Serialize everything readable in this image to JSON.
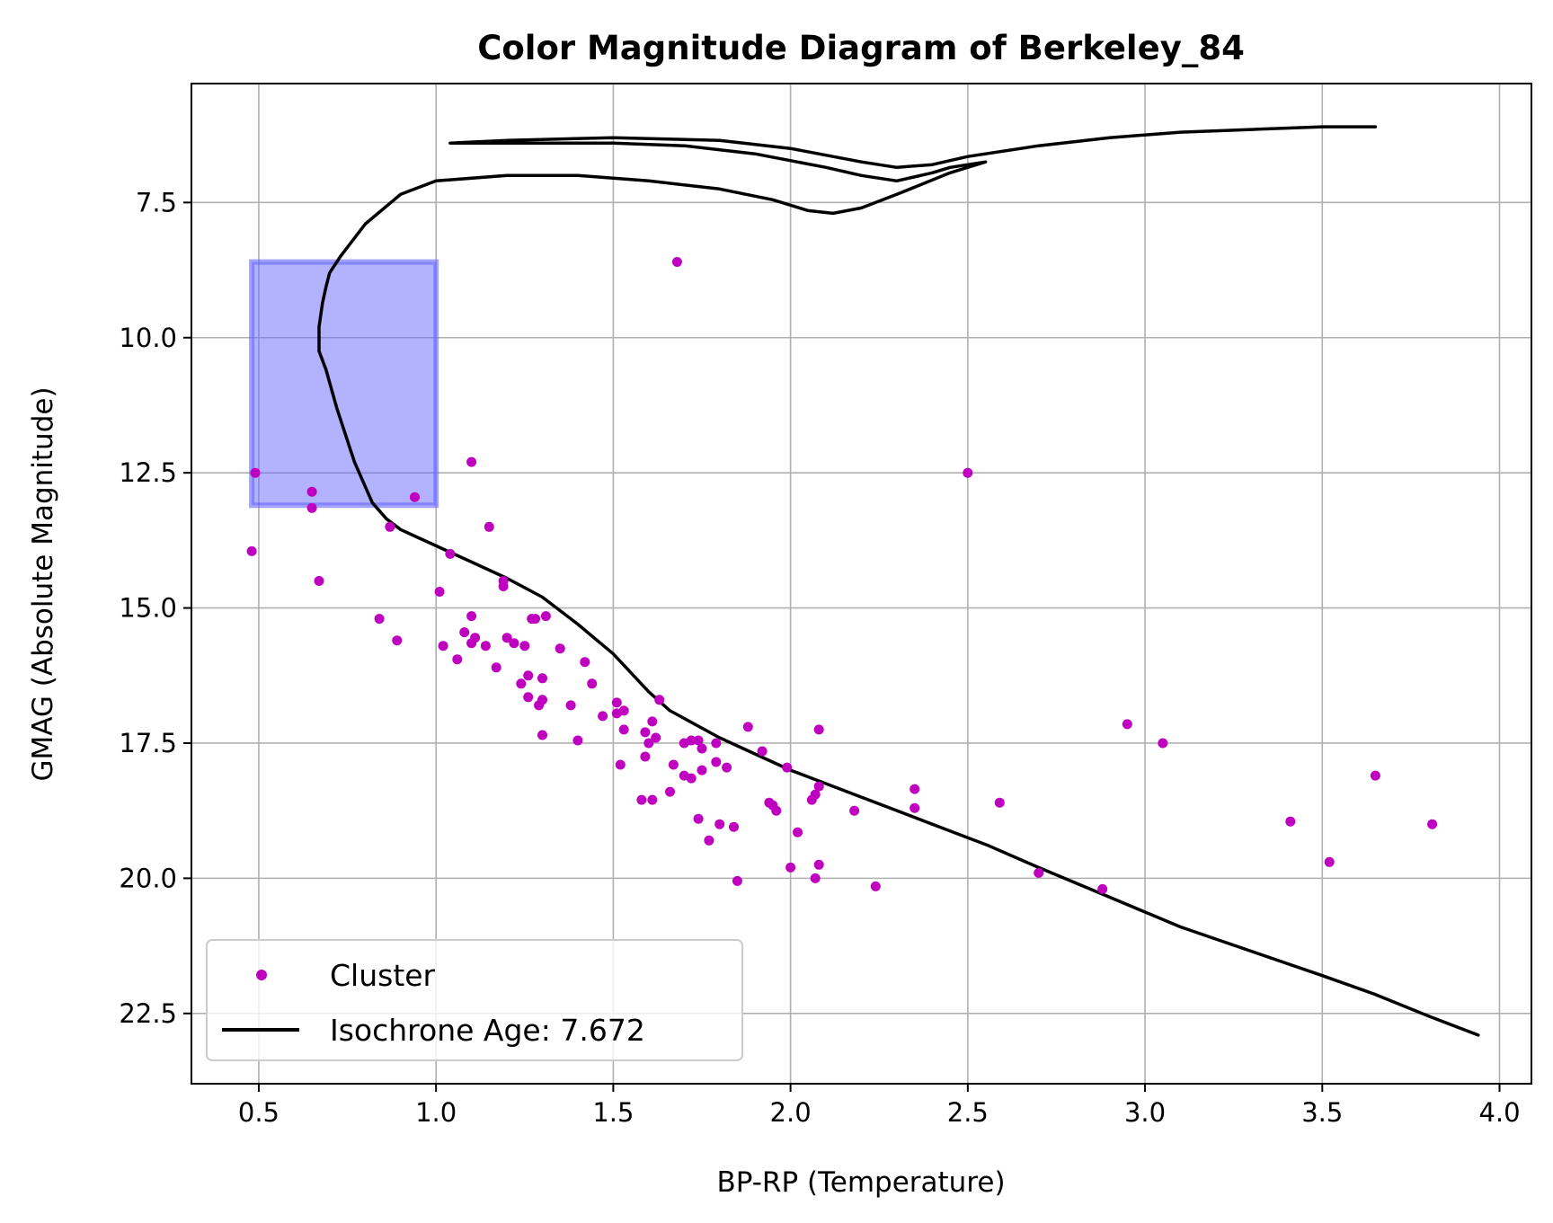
{
  "chart_data": {
    "type": "scatter",
    "title": "Color Magnitude Diagram of Berkeley_84",
    "xlabel": "BP-RP (Temperature)",
    "ylabel": "GMAG (Absolute Magnitude)",
    "xlim": [
      0.31,
      4.09
    ],
    "ylim": [
      23.8,
      5.3
    ],
    "y_inverted": true,
    "grid": true,
    "legend_position": "lower-left",
    "x_ticks": [
      "0.5",
      "1.0",
      "1.5",
      "2.0",
      "2.5",
      "3.0",
      "3.5",
      "4.0"
    ],
    "y_ticks": [
      "7.5",
      "10.0",
      "12.5",
      "15.0",
      "17.5",
      "20.0",
      "22.5"
    ],
    "colors": {
      "cluster": "#bf00bf",
      "isochrone": "#000000",
      "box": "#6666ff"
    },
    "highlight_box": {
      "x": [
        0.48,
        1.0
      ],
      "y": [
        8.6,
        13.1
      ]
    },
    "series": [
      {
        "name": "Cluster",
        "kind": "scatter",
        "points": [
          [
            1.68,
            8.6
          ],
          [
            2.5,
            12.5
          ],
          [
            1.1,
            12.3
          ],
          [
            0.49,
            12.5
          ],
          [
            0.65,
            12.85
          ],
          [
            0.65,
            13.15
          ],
          [
            0.94,
            12.95
          ],
          [
            0.87,
            13.5
          ],
          [
            1.15,
            13.5
          ],
          [
            0.48,
            13.95
          ],
          [
            1.04,
            14.0
          ],
          [
            0.67,
            14.5
          ],
          [
            1.19,
            14.5
          ],
          [
            1.19,
            14.6
          ],
          [
            1.01,
            14.7
          ],
          [
            0.84,
            15.2
          ],
          [
            0.89,
            15.6
          ],
          [
            1.1,
            15.15
          ],
          [
            1.08,
            15.45
          ],
          [
            1.11,
            15.55
          ],
          [
            1.1,
            15.65
          ],
          [
            1.02,
            15.7
          ],
          [
            1.06,
            15.95
          ],
          [
            1.14,
            15.7
          ],
          [
            1.2,
            15.55
          ],
          [
            1.22,
            15.65
          ],
          [
            1.25,
            15.7
          ],
          [
            1.27,
            15.2
          ],
          [
            1.28,
            15.2
          ],
          [
            1.31,
            15.15
          ],
          [
            1.35,
            15.75
          ],
          [
            1.42,
            16.0
          ],
          [
            1.17,
            16.1
          ],
          [
            1.24,
            16.4
          ],
          [
            1.26,
            16.25
          ],
          [
            1.3,
            16.3
          ],
          [
            1.26,
            16.65
          ],
          [
            1.29,
            16.8
          ],
          [
            1.3,
            16.7
          ],
          [
            1.38,
            16.8
          ],
          [
            1.44,
            16.4
          ],
          [
            1.47,
            17.0
          ],
          [
            1.51,
            16.75
          ],
          [
            1.51,
            16.95
          ],
          [
            1.53,
            16.9
          ],
          [
            1.53,
            17.25
          ],
          [
            1.61,
            17.1
          ],
          [
            1.63,
            16.7
          ],
          [
            1.3,
            17.35
          ],
          [
            1.4,
            17.45
          ],
          [
            1.59,
            17.3
          ],
          [
            1.6,
            17.5
          ],
          [
            1.59,
            17.75
          ],
          [
            1.62,
            17.4
          ],
          [
            1.72,
            17.45
          ],
          [
            1.7,
            17.5
          ],
          [
            1.74,
            17.45
          ],
          [
            1.75,
            17.6
          ],
          [
            1.79,
            17.5
          ],
          [
            1.88,
            17.2
          ],
          [
            2.08,
            17.25
          ],
          [
            1.52,
            17.9
          ],
          [
            1.67,
            17.9
          ],
          [
            1.7,
            18.1
          ],
          [
            1.72,
            18.15
          ],
          [
            1.75,
            18.0
          ],
          [
            1.79,
            17.85
          ],
          [
            1.82,
            17.95
          ],
          [
            1.92,
            17.65
          ],
          [
            1.99,
            17.95
          ],
          [
            1.66,
            18.4
          ],
          [
            1.58,
            18.55
          ],
          [
            1.61,
            18.55
          ],
          [
            2.08,
            18.3
          ],
          [
            2.07,
            18.45
          ],
          [
            2.06,
            18.55
          ],
          [
            1.94,
            18.6
          ],
          [
            1.95,
            18.65
          ],
          [
            1.96,
            18.75
          ],
          [
            2.18,
            18.75
          ],
          [
            2.35,
            18.35
          ],
          [
            2.35,
            18.7
          ],
          [
            2.59,
            18.6
          ],
          [
            1.74,
            18.9
          ],
          [
            1.8,
            19.0
          ],
          [
            1.84,
            19.05
          ],
          [
            2.02,
            19.15
          ],
          [
            1.77,
            19.3
          ],
          [
            2.08,
            19.75
          ],
          [
            2.0,
            19.8
          ],
          [
            2.07,
            20.0
          ],
          [
            1.85,
            20.05
          ],
          [
            2.24,
            20.15
          ],
          [
            2.7,
            19.9
          ],
          [
            2.88,
            20.2
          ],
          [
            2.95,
            17.15
          ],
          [
            3.05,
            17.5
          ],
          [
            3.41,
            18.95
          ],
          [
            3.52,
            19.7
          ],
          [
            3.65,
            18.1
          ],
          [
            3.81,
            19.0
          ]
        ]
      },
      {
        "name": "Isochrone Age: 7.672",
        "kind": "line",
        "points": [
          [
            3.94,
            22.9
          ],
          [
            3.8,
            22.55
          ],
          [
            3.65,
            22.15
          ],
          [
            3.5,
            21.8
          ],
          [
            3.3,
            21.35
          ],
          [
            3.1,
            20.9
          ],
          [
            2.9,
            20.35
          ],
          [
            2.7,
            19.8
          ],
          [
            2.56,
            19.4
          ],
          [
            2.4,
            19.0
          ],
          [
            2.2,
            18.5
          ],
          [
            2.0,
            18.0
          ],
          [
            1.8,
            17.4
          ],
          [
            1.66,
            16.9
          ],
          [
            1.6,
            16.55
          ],
          [
            1.5,
            15.85
          ],
          [
            1.4,
            15.3
          ],
          [
            1.3,
            14.8
          ],
          [
            1.2,
            14.45
          ],
          [
            1.1,
            14.15
          ],
          [
            1.0,
            13.85
          ],
          [
            0.95,
            13.7
          ],
          [
            0.9,
            13.55
          ],
          [
            0.86,
            13.35
          ],
          [
            0.82,
            13.05
          ],
          [
            0.77,
            12.3
          ],
          [
            0.72,
            11.3
          ],
          [
            0.69,
            10.6
          ],
          [
            0.67,
            10.25
          ],
          [
            0.67,
            9.8
          ],
          [
            0.68,
            9.35
          ],
          [
            0.69,
            9.05
          ],
          [
            0.7,
            8.8
          ],
          [
            0.73,
            8.5
          ],
          [
            0.8,
            7.9
          ],
          [
            0.9,
            7.35
          ],
          [
            1.0,
            7.1
          ],
          [
            1.2,
            7.0
          ],
          [
            1.4,
            7.0
          ],
          [
            1.6,
            7.1
          ],
          [
            1.8,
            7.25
          ],
          [
            1.95,
            7.45
          ],
          [
            2.05,
            7.65
          ],
          [
            2.12,
            7.7
          ],
          [
            2.2,
            7.6
          ],
          [
            2.3,
            7.35
          ],
          [
            2.45,
            6.95
          ],
          [
            2.55,
            6.75
          ],
          [
            2.45,
            6.85
          ],
          [
            2.4,
            6.95
          ],
          [
            2.3,
            7.1
          ],
          [
            2.2,
            7.0
          ],
          [
            2.1,
            6.85
          ],
          [
            1.9,
            6.6
          ],
          [
            1.7,
            6.45
          ],
          [
            1.5,
            6.4
          ],
          [
            1.2,
            6.4
          ],
          [
            1.04,
            6.4
          ],
          [
            1.2,
            6.35
          ],
          [
            1.5,
            6.3
          ],
          [
            1.8,
            6.35
          ],
          [
            2.0,
            6.5
          ],
          [
            2.2,
            6.75
          ],
          [
            2.3,
            6.85
          ],
          [
            2.4,
            6.8
          ],
          [
            2.5,
            6.65
          ],
          [
            2.7,
            6.45
          ],
          [
            2.9,
            6.3
          ],
          [
            3.1,
            6.2
          ],
          [
            3.3,
            6.15
          ],
          [
            3.5,
            6.1
          ],
          [
            3.65,
            6.1
          ]
        ]
      }
    ]
  }
}
